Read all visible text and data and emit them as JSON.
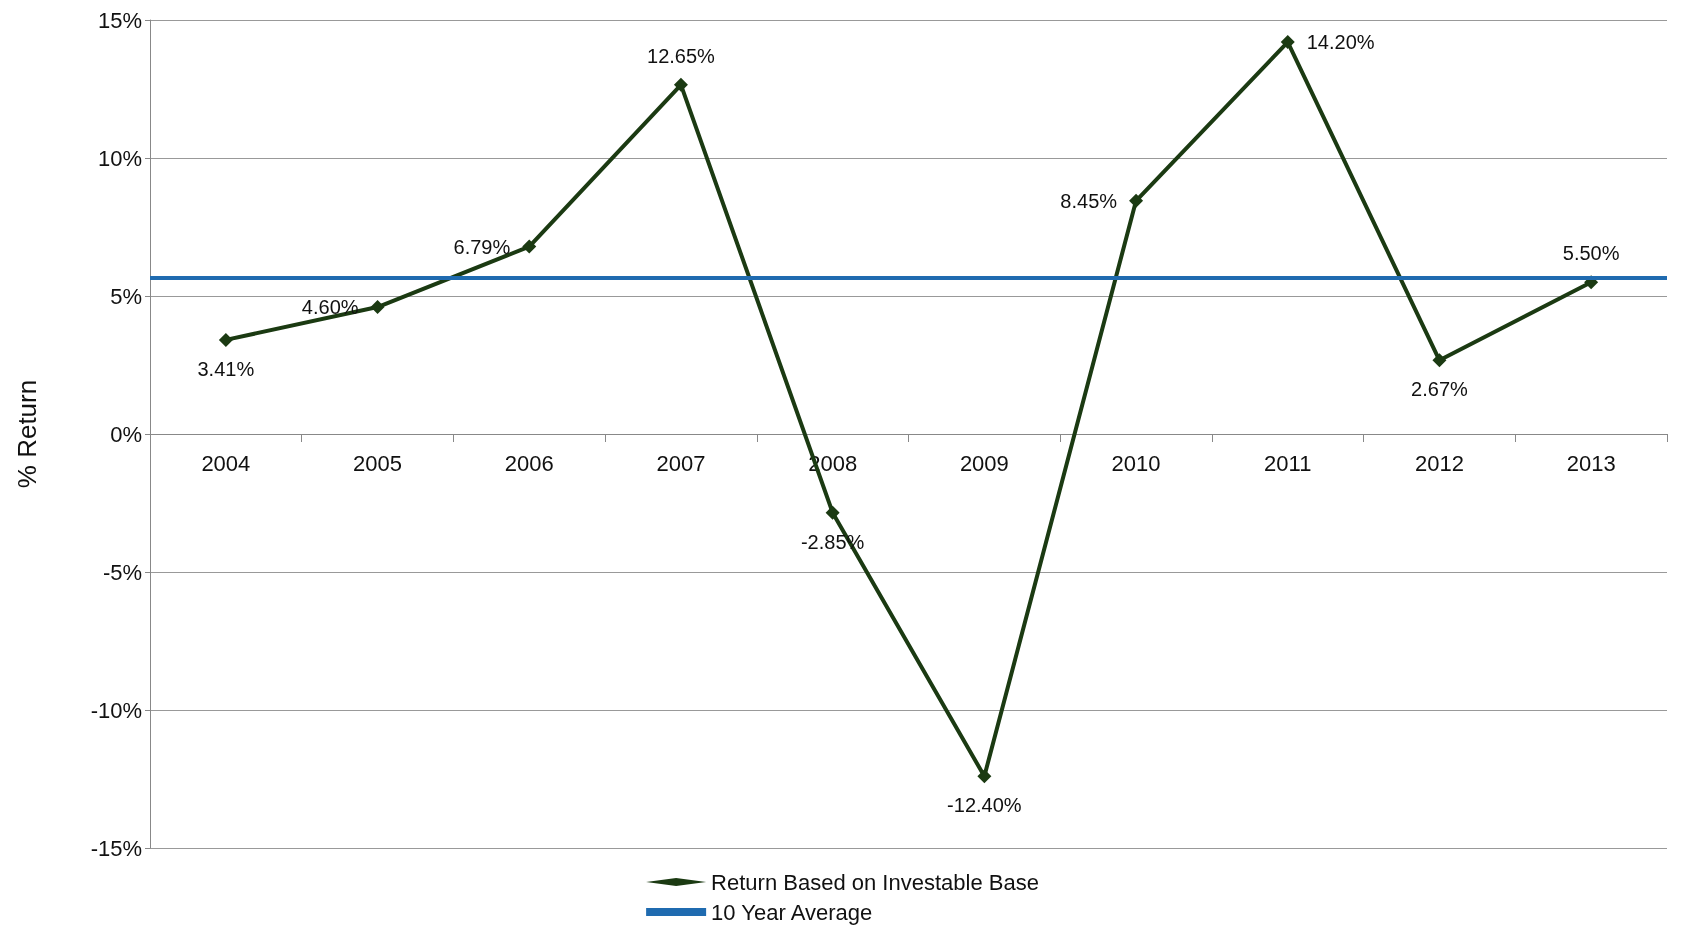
{
  "chart_data": {
    "type": "line",
    "ylabel": "% Return",
    "categories": [
      "2004",
      "2005",
      "2006",
      "2007",
      "2008",
      "2009",
      "2010",
      "2011",
      "2012",
      "2013"
    ],
    "series": [
      {
        "name": "Return Based on Investable Base",
        "color": "#1b3a12",
        "values": [
          3.41,
          4.6,
          6.79,
          12.65,
          -2.85,
          -12.4,
          8.45,
          14.2,
          2.67,
          5.5
        ],
        "value_labels": [
          "3.41%",
          "4.60%",
          "6.79%",
          "12.65%",
          "-2.85%",
          "-12.40%",
          "8.45%",
          "14.20%",
          "2.67%",
          "5.50%"
        ]
      }
    ],
    "ref_lines": [
      {
        "axis": "y",
        "value": 5.66,
        "label": "10 Year Average",
        "color": "#1f6bb0"
      }
    ],
    "ylim": [
      -15,
      15
    ],
    "yticks": [
      {
        "value": -15,
        "label": "-15%"
      },
      {
        "value": -10,
        "label": "-10%"
      },
      {
        "value": -5,
        "label": "-5%"
      },
      {
        "value": 0,
        "label": "0%"
      },
      {
        "value": 5,
        "label": "5%"
      },
      {
        "value": 10,
        "label": "10%"
      },
      {
        "value": 15,
        "label": "15%"
      }
    ],
    "grid": "y",
    "legend": "bottom",
    "marker": "diamond",
    "line_style": "solid"
  }
}
